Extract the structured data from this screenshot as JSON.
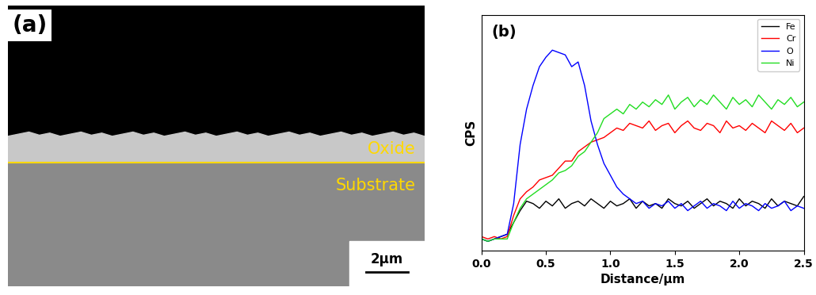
{
  "image_panel": {
    "label": "(a)",
    "annotations": [
      "Oxide",
      "Substrate"
    ],
    "scale_bar": "2μm"
  },
  "chart_data": {
    "type": "line",
    "title": "(b)",
    "x_label": "Distance/μm",
    "y_label": "CPS",
    "x": [
      0.0,
      0.05,
      0.1,
      0.15,
      0.2,
      0.25,
      0.3,
      0.35,
      0.4,
      0.45,
      0.5,
      0.55,
      0.6,
      0.65,
      0.7,
      0.75,
      0.8,
      0.85,
      0.9,
      0.95,
      1.0,
      1.05,
      1.1,
      1.15,
      1.2,
      1.25,
      1.3,
      1.35,
      1.4,
      1.45,
      1.5,
      1.55,
      1.6,
      1.65,
      1.7,
      1.75,
      1.8,
      1.85,
      1.9,
      1.95,
      2.0,
      2.05,
      2.1,
      2.15,
      2.2,
      2.25,
      2.3,
      2.35,
      2.4,
      2.45,
      2.5
    ],
    "series": [
      {
        "name": "Fe",
        "color": "#000000",
        "values": [
          5,
          4,
          5,
          6,
          7,
          12,
          17,
          21,
          20,
          18,
          21,
          19,
          22,
          18,
          20,
          21,
          19,
          22,
          20,
          18,
          21,
          19,
          20,
          22,
          18,
          21,
          19,
          20,
          18,
          22,
          20,
          19,
          21,
          18,
          20,
          22,
          19,
          21,
          20,
          18,
          22,
          19,
          21,
          20,
          18,
          22,
          19,
          21,
          20,
          19,
          23
        ]
      },
      {
        "name": "Cr",
        "color": "#ff0000",
        "values": [
          6,
          5,
          6,
          5,
          6,
          15,
          22,
          25,
          27,
          30,
          31,
          32,
          35,
          38,
          38,
          42,
          44,
          46,
          47,
          48,
          50,
          52,
          51,
          54,
          53,
          52,
          55,
          51,
          53,
          54,
          50,
          53,
          55,
          52,
          51,
          54,
          53,
          50,
          55,
          52,
          53,
          51,
          54,
          52,
          50,
          55,
          53,
          51,
          54,
          50,
          52
        ]
      },
      {
        "name": "O",
        "color": "#0000ff",
        "values": [
          5,
          4,
          5,
          6,
          7,
          20,
          45,
          60,
          70,
          78,
          82,
          85,
          84,
          83,
          78,
          80,
          70,
          55,
          45,
          37,
          32,
          27,
          24,
          22,
          20,
          21,
          18,
          20,
          19,
          21,
          18,
          20,
          17,
          19,
          21,
          18,
          20,
          19,
          17,
          21,
          18,
          20,
          19,
          17,
          20,
          18,
          19,
          21,
          17,
          19,
          18
        ]
      },
      {
        "name": "Ni",
        "color": "#22dd22",
        "values": [
          5,
          4,
          5,
          5,
          5,
          12,
          18,
          22,
          24,
          26,
          28,
          30,
          33,
          34,
          36,
          40,
          42,
          46,
          50,
          56,
          58,
          60,
          58,
          62,
          60,
          63,
          61,
          64,
          62,
          66,
          60,
          63,
          65,
          61,
          64,
          62,
          66,
          63,
          60,
          65,
          62,
          64,
          61,
          66,
          63,
          60,
          64,
          62,
          65,
          61,
          63
        ]
      }
    ],
    "xlim": [
      0.0,
      2.5
    ],
    "xticks": [
      {
        "value": 0.0,
        "label": "0.0"
      },
      0.5,
      {
        "value": 1.0,
        "label": "1.0"
      },
      1.5,
      {
        "value": 2.0,
        "label": "2.0"
      },
      2.5
    ],
    "ylim": [
      0,
      100
    ],
    "yticks": [],
    "tick_labels": "x",
    "legend": "upper right",
    "grid": false
  }
}
